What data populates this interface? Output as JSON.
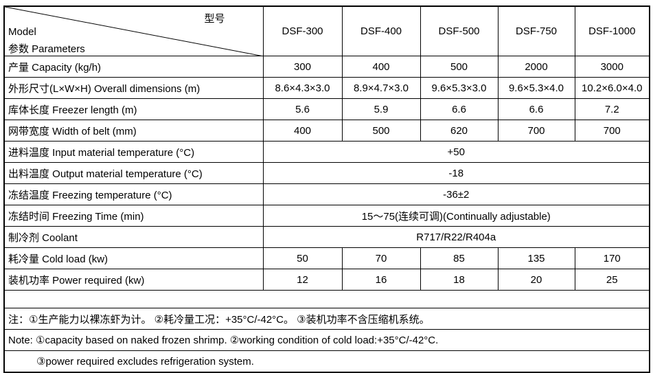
{
  "header": {
    "type_label": "型号",
    "model_label": "Model",
    "param_label": "参数 Parameters",
    "models": [
      "DSF-300",
      "DSF-400",
      "DSF-500",
      "DSF-750",
      "DSF-1000"
    ]
  },
  "rows": [
    {
      "label": "产量 Capacity (kg/h)",
      "values": [
        "300",
        "400",
        "500",
        "2000",
        "3000"
      ]
    },
    {
      "label": "外形尺寸(L×W×H) Overall dimensions (m)",
      "values": [
        "8.6×4.3×3.0",
        "8.9×4.7×3.0",
        "9.6×5.3×3.0",
        "9.6×5.3×4.0",
        "10.2×6.0×4.0"
      ]
    },
    {
      "label": "库体长度 Freezer length (m)",
      "values": [
        "5.6",
        "5.9",
        "6.6",
        "6.6",
        "7.2"
      ]
    },
    {
      "label": "网带宽度 Width of belt (mm)",
      "values": [
        "400",
        "500",
        "620",
        "700",
        "700"
      ]
    },
    {
      "label": "进料温度 Input material temperature (°C)",
      "values": [
        "+50"
      ]
    },
    {
      "label": "出料温度 Output material temperature (°C)",
      "values": [
        "-18"
      ]
    },
    {
      "label": "冻结温度 Freezing temperature (°C)",
      "values": [
        "-36±2"
      ]
    },
    {
      "label": "冻结时间 Freezing Time (min)",
      "values": [
        "15～75(连续可调)(Continually adjustable)"
      ]
    },
    {
      "label": "制冷剂 Coolant",
      "values": [
        "R717/R22/R404a"
      ]
    },
    {
      "label": "耗冷量 Cold load (kw)",
      "values": [
        "50",
        "70",
        "85",
        "135",
        "170"
      ]
    },
    {
      "label": "装机功率 Power required (kw)",
      "values": [
        "12",
        "16",
        "18",
        "20",
        "25"
      ]
    }
  ],
  "notes": {
    "cn": "注：①生产能力以裸冻虾为计。 ②耗冷量工况：+35°C/-42°C。 ③装机功率不含压缩机系统。",
    "en_line1": "Note: ①capacity based on naked frozen shrimp. ②working condition of cold load:+35°C/-42°C.",
    "en_line2": "③power required excludes refrigeration system."
  }
}
